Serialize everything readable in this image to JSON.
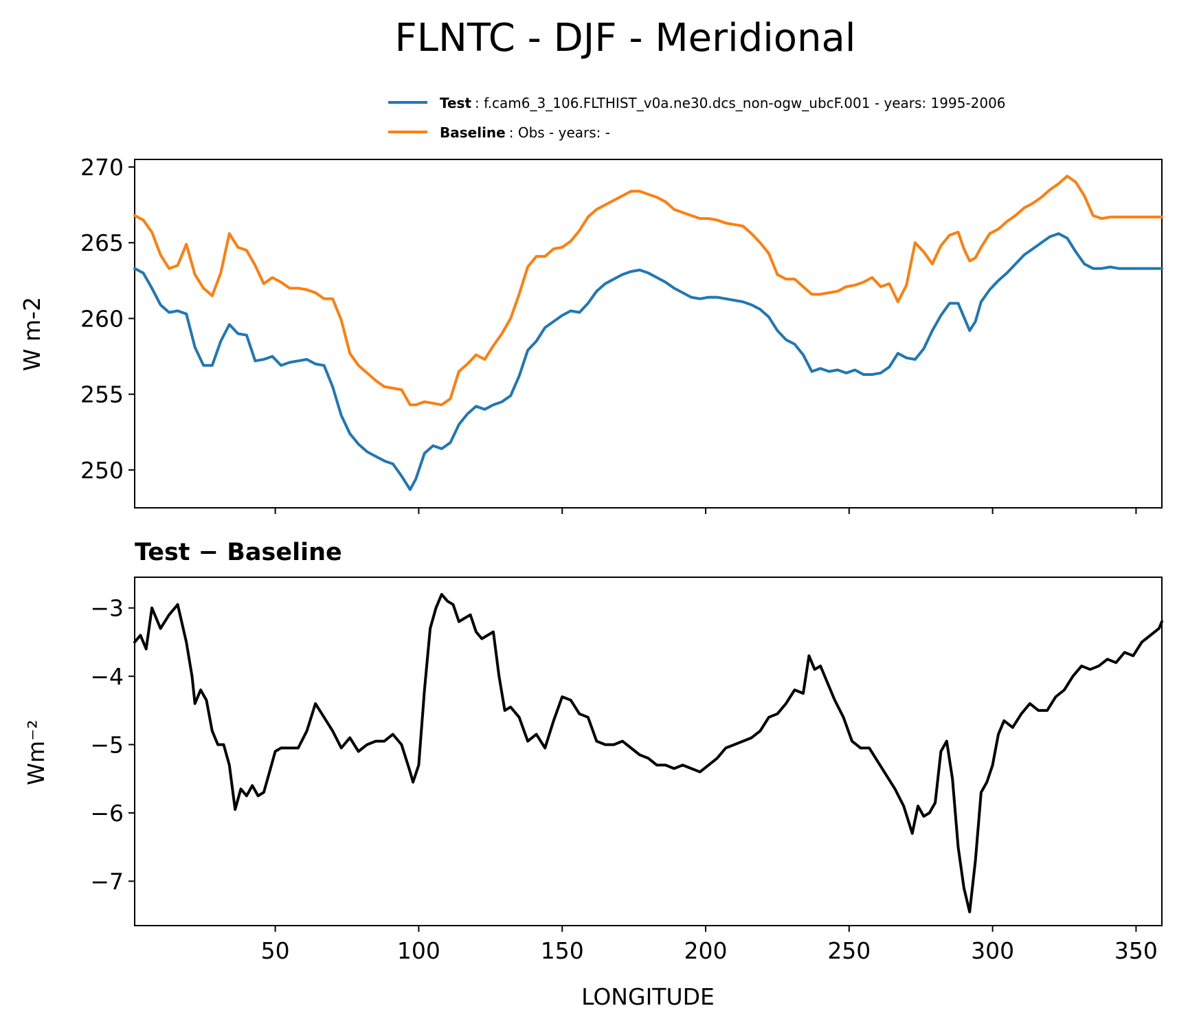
{
  "chart_data": [
    {
      "type": "line",
      "title": "FLNTC - DJF - Meridional",
      "xlabel": "",
      "ylabel": "W m-2",
      "xlim": [
        1,
        359
      ],
      "ylim": [
        247.5,
        270.5
      ],
      "yticks": [
        "250",
        "255",
        "260",
        "265",
        "270"
      ],
      "grid": false,
      "legend_position": "top-right",
      "series": [
        {
          "name": "Test",
          "legend_label": "Test",
          "legend_desc": ": f.cam6_3_106.FLTHIST_v0a.ne30.dcs_non-ogw_ubcF.001 - years: 1995-2006",
          "color": "#1f77b4",
          "x": [
            1,
            4,
            7,
            10,
            13,
            16,
            19,
            22,
            25,
            28,
            31,
            34,
            37,
            40,
            43,
            46,
            49,
            52,
            55,
            58,
            61,
            64,
            67,
            70,
            73,
            76,
            79,
            82,
            85,
            88,
            91,
            94,
            97,
            99,
            102,
            105,
            108,
            111,
            114,
            117,
            120,
            123,
            126,
            129,
            132,
            135,
            138,
            141,
            144,
            147,
            150,
            153,
            156,
            159,
            162,
            165,
            168,
            171,
            174,
            177,
            180,
            183,
            186,
            189,
            192,
            195,
            198,
            201,
            204,
            207,
            210,
            213,
            216,
            219,
            222,
            225,
            228,
            231,
            234,
            237,
            240,
            243,
            246,
            249,
            252,
            255,
            258,
            261,
            264,
            267,
            270,
            273,
            276,
            279,
            282,
            285,
            288,
            290,
            292,
            294,
            296,
            299,
            302,
            305,
            308,
            311,
            314,
            317,
            320,
            323,
            326,
            329,
            332,
            335,
            338,
            341,
            344,
            347,
            350,
            353,
            356,
            359
          ],
          "values": [
            263.3,
            263.0,
            262.0,
            260.9,
            260.4,
            260.5,
            260.3,
            258.1,
            256.9,
            256.9,
            258.5,
            259.6,
            259.0,
            258.9,
            257.2,
            257.3,
            257.5,
            256.9,
            257.1,
            257.2,
            257.3,
            257.0,
            256.9,
            255.5,
            253.6,
            252.4,
            251.7,
            251.2,
            250.9,
            250.6,
            250.4,
            249.6,
            248.7,
            249.4,
            251.1,
            251.6,
            251.4,
            251.8,
            253.0,
            253.7,
            254.2,
            254.0,
            254.3,
            254.5,
            254.9,
            256.2,
            257.9,
            258.5,
            259.4,
            259.8,
            260.2,
            260.5,
            260.4,
            261.0,
            261.8,
            262.3,
            262.6,
            262.9,
            263.1,
            263.2,
            263.0,
            262.7,
            262.4,
            262.0,
            261.7,
            261.4,
            261.3,
            261.4,
            261.4,
            261.3,
            261.2,
            261.1,
            260.9,
            260.6,
            260.1,
            259.2,
            258.6,
            258.3,
            257.6,
            256.5,
            256.7,
            256.5,
            256.6,
            256.4,
            256.6,
            256.3,
            256.3,
            256.4,
            256.8,
            257.7,
            257.4,
            257.3,
            258.0,
            259.2,
            260.2,
            261.0,
            261.0,
            260.1,
            259.2,
            259.8,
            261.1,
            261.9,
            262.5,
            263.0,
            263.6,
            264.2,
            264.6,
            265.0,
            265.4,
            265.6,
            265.3,
            264.4,
            263.6,
            263.3,
            263.3,
            263.4,
            263.3,
            263.3,
            263.3,
            263.3,
            263.3,
            263.3
          ]
        },
        {
          "name": "Baseline",
          "legend_label": "Baseline",
          "legend_desc": ": Obs - years: -",
          "color": "#ff7f0e",
          "x": [
            1,
            4,
            7,
            10,
            13,
            16,
            19,
            22,
            25,
            28,
            31,
            34,
            37,
            40,
            43,
            46,
            49,
            52,
            55,
            58,
            61,
            64,
            67,
            70,
            73,
            76,
            79,
            82,
            85,
            88,
            91,
            94,
            97,
            99,
            102,
            105,
            108,
            111,
            114,
            117,
            120,
            123,
            126,
            129,
            132,
            135,
            138,
            141,
            144,
            147,
            150,
            153,
            156,
            159,
            162,
            165,
            168,
            171,
            174,
            177,
            180,
            183,
            186,
            189,
            192,
            195,
            198,
            201,
            204,
            207,
            210,
            213,
            216,
            219,
            222,
            225,
            228,
            231,
            234,
            237,
            240,
            243,
            246,
            249,
            252,
            255,
            258,
            261,
            264,
            267,
            270,
            273,
            276,
            279,
            282,
            285,
            288,
            290,
            292,
            294,
            296,
            299,
            302,
            305,
            308,
            311,
            314,
            317,
            320,
            323,
            326,
            329,
            332,
            335,
            338,
            341,
            344,
            347,
            350,
            353,
            356,
            359
          ],
          "values": [
            266.8,
            266.5,
            265.7,
            264.2,
            263.3,
            263.5,
            264.9,
            262.9,
            262.0,
            261.5,
            263.0,
            265.6,
            264.7,
            264.5,
            263.5,
            262.3,
            262.7,
            262.4,
            262.0,
            262.0,
            261.9,
            261.7,
            261.3,
            261.3,
            259.9,
            257.7,
            256.9,
            256.4,
            255.9,
            255.5,
            255.4,
            255.3,
            254.3,
            254.3,
            254.5,
            254.4,
            254.3,
            254.7,
            256.5,
            257.0,
            257.6,
            257.3,
            258.2,
            259.0,
            260.0,
            261.6,
            263.4,
            264.1,
            264.1,
            264.6,
            264.7,
            265.1,
            265.8,
            266.7,
            267.2,
            267.5,
            267.8,
            268.1,
            268.4,
            268.4,
            268.2,
            268.0,
            267.7,
            267.2,
            267.0,
            266.8,
            266.6,
            266.6,
            266.5,
            266.3,
            266.2,
            266.1,
            265.6,
            265.0,
            264.3,
            262.9,
            262.6,
            262.6,
            262.1,
            261.6,
            261.6,
            261.7,
            261.8,
            262.1,
            262.2,
            262.4,
            262.7,
            262.1,
            262.3,
            261.1,
            262.2,
            265.0,
            264.4,
            263.6,
            264.8,
            265.5,
            265.7,
            264.6,
            263.8,
            264.0,
            264.7,
            265.6,
            265.9,
            266.4,
            266.8,
            267.3,
            267.6,
            268.0,
            268.5,
            268.9,
            269.4,
            269.0,
            268.1,
            266.8,
            266.6,
            266.7,
            266.7,
            266.7,
            266.7,
            266.7,
            266.7,
            266.7
          ]
        }
      ]
    },
    {
      "type": "line",
      "title": "Test − Baseline",
      "xlabel": "LONGITUDE",
      "ylabel": "Wm⁻²",
      "xlim": [
        1,
        359
      ],
      "ylim": [
        -7.65,
        -2.55
      ],
      "yticks": [
        "−3",
        "−4",
        "−5",
        "−6",
        "−7"
      ],
      "xticks": [
        "50",
        "100",
        "150",
        "200",
        "250",
        "300",
        "350"
      ],
      "grid": false,
      "series": [
        {
          "color": "#000000",
          "x": [
            1,
            3,
            5,
            7,
            10,
            13,
            16,
            19,
            21,
            22,
            24,
            26,
            28,
            30,
            32,
            34,
            36,
            38,
            40,
            42,
            44,
            46,
            48,
            50,
            52,
            55,
            58,
            61,
            64,
            67,
            70,
            73,
            76,
            79,
            82,
            85,
            88,
            91,
            94,
            97,
            98,
            100,
            102,
            104,
            106,
            108,
            110,
            112,
            114,
            116,
            118,
            120,
            122,
            124,
            126,
            128,
            130,
            132,
            135,
            138,
            141,
            144,
            147,
            150,
            153,
            156,
            159,
            162,
            165,
            168,
            171,
            174,
            177,
            180,
            183,
            186,
            189,
            192,
            195,
            198,
            201,
            204,
            207,
            210,
            213,
            216,
            219,
            222,
            225,
            228,
            231,
            234,
            236,
            238,
            240,
            242,
            245,
            248,
            251,
            254,
            257,
            260,
            263,
            266,
            269,
            272,
            274,
            276,
            278,
            280,
            282,
            284,
            286,
            288,
            290,
            292,
            294,
            296,
            298,
            300,
            302,
            304,
            307,
            310,
            313,
            316,
            319,
            322,
            325,
            328,
            331,
            334,
            337,
            340,
            343,
            346,
            349,
            352,
            355,
            358,
            359
          ],
          "values": [
            -3.5,
            -3.4,
            -3.6,
            -3.0,
            -3.3,
            -3.1,
            -2.95,
            -3.5,
            -4.0,
            -4.4,
            -4.2,
            -4.35,
            -4.8,
            -5.0,
            -5.0,
            -5.3,
            -5.95,
            -5.65,
            -5.75,
            -5.6,
            -5.75,
            -5.7,
            -5.4,
            -5.1,
            -5.05,
            -5.05,
            -5.05,
            -4.8,
            -4.4,
            -4.6,
            -4.8,
            -5.05,
            -4.9,
            -5.1,
            -5.0,
            -4.95,
            -4.95,
            -4.85,
            -5.0,
            -5.4,
            -5.55,
            -5.3,
            -4.2,
            -3.3,
            -3.0,
            -2.8,
            -2.9,
            -2.95,
            -3.2,
            -3.15,
            -3.1,
            -3.35,
            -3.45,
            -3.4,
            -3.35,
            -4.0,
            -4.5,
            -4.45,
            -4.6,
            -4.95,
            -4.85,
            -5.05,
            -4.65,
            -4.3,
            -4.35,
            -4.55,
            -4.6,
            -4.95,
            -5.0,
            -5.0,
            -4.95,
            -5.05,
            -5.15,
            -5.2,
            -5.3,
            -5.3,
            -5.35,
            -5.3,
            -5.35,
            -5.4,
            -5.3,
            -5.2,
            -5.05,
            -5.0,
            -4.95,
            -4.9,
            -4.8,
            -4.6,
            -4.55,
            -4.4,
            -4.2,
            -4.25,
            -3.7,
            -3.9,
            -3.85,
            -4.05,
            -4.35,
            -4.6,
            -4.95,
            -5.05,
            -5.05,
            -5.25,
            -5.45,
            -5.65,
            -5.9,
            -6.3,
            -5.9,
            -6.05,
            -6.0,
            -5.85,
            -5.1,
            -4.95,
            -5.5,
            -6.5,
            -7.1,
            -7.45,
            -6.7,
            -5.7,
            -5.55,
            -5.3,
            -4.85,
            -4.65,
            -4.75,
            -4.55,
            -4.4,
            -4.5,
            -4.5,
            -4.3,
            -4.2,
            -4.0,
            -3.85,
            -3.9,
            -3.85,
            -3.75,
            -3.8,
            -3.65,
            -3.7,
            -3.5,
            -3.4,
            -3.3,
            -3.2
          ]
        }
      ]
    }
  ]
}
